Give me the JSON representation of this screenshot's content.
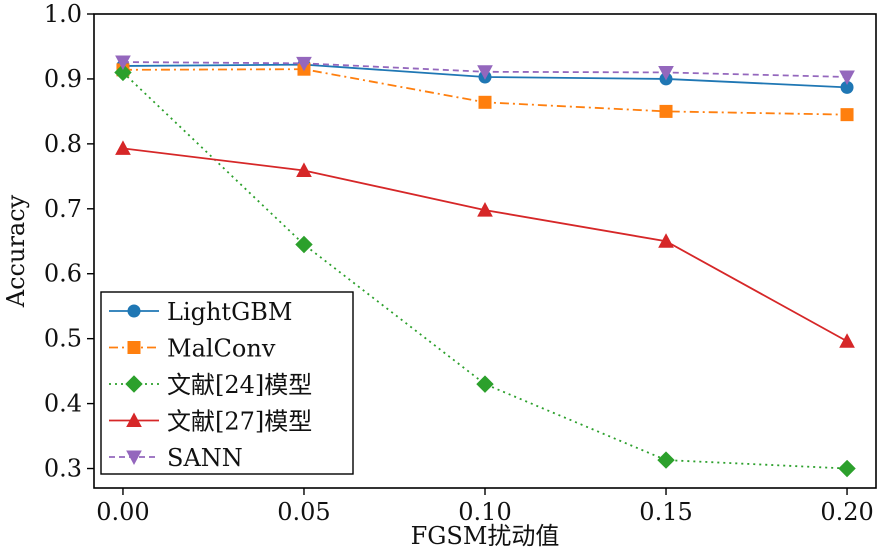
{
  "chart_data": {
    "type": "line",
    "xlabel": "FGSM扰动值",
    "ylabel": "Accuracy",
    "x": [
      0.0,
      0.05,
      0.1,
      0.15,
      0.2
    ],
    "x_tick_labels": [
      "0.00",
      "0.05",
      "0.10",
      "0.15",
      "0.20"
    ],
    "y_ticks": [
      0.3,
      0.4,
      0.5,
      0.6,
      0.7,
      0.8,
      0.9,
      1.0
    ],
    "y_tick_labels": [
      "0.3",
      "0.4",
      "0.5",
      "0.6",
      "0.7",
      "0.8",
      "0.9",
      "1.0"
    ],
    "xlim": [
      -0.008,
      0.208
    ],
    "ylim": [
      0.27,
      1.0
    ],
    "grid": false,
    "legend_position": "lower-left",
    "series": [
      {
        "name": "LightGBM",
        "values": [
          0.92,
          0.922,
          0.903,
          0.9,
          0.887
        ],
        "color": "#1f77b4",
        "dash": "solid",
        "marker": "circle"
      },
      {
        "name": "MalConv",
        "values": [
          0.914,
          0.915,
          0.864,
          0.85,
          0.845
        ],
        "color": "#ff7f0e",
        "dash": "dashdot",
        "marker": "square"
      },
      {
        "name": "文献[24]模型",
        "values": [
          0.91,
          0.645,
          0.43,
          0.313,
          0.3
        ],
        "color": "#2ca02c",
        "dash": "dotted",
        "marker": "diamond"
      },
      {
        "name": "文献[27]模型",
        "values": [
          0.793,
          0.759,
          0.698,
          0.65,
          0.496
        ],
        "color": "#d62728",
        "dash": "solid",
        "marker": "triangle-up"
      },
      {
        "name": "SANN",
        "values": [
          0.926,
          0.924,
          0.911,
          0.91,
          0.903
        ],
        "color": "#9467bd",
        "dash": "dashed",
        "marker": "triangle-down"
      }
    ]
  }
}
